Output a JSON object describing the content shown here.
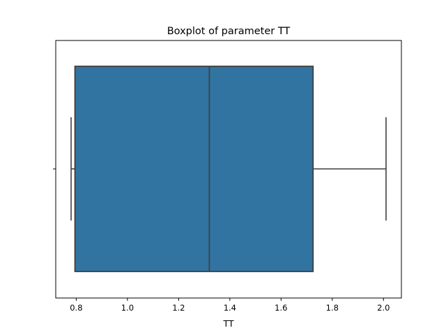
{
  "chart_data": {
    "type": "boxplot",
    "title": "Boxplot of parameter TT",
    "xlabel": "TT",
    "ylabel": "",
    "orientation": "horizontal",
    "xlim": [
      0.72,
      2.07
    ],
    "xticks": [
      0.8,
      1.0,
      1.2,
      1.4,
      1.6,
      1.8,
      2.0
    ],
    "xtick_labels": [
      "0.8",
      "1.0",
      "1.2",
      "1.4",
      "1.6",
      "1.8",
      "2.0"
    ],
    "box": {
      "whisker_low": 0.78,
      "q1": 0.795,
      "median": 1.32,
      "q3": 1.725,
      "whisker_high": 2.01
    },
    "grid": false,
    "colors": {
      "box_fill": "#3274a1",
      "line": "#3f3f3f",
      "axes": "#000000",
      "background": "#ffffff"
    }
  }
}
